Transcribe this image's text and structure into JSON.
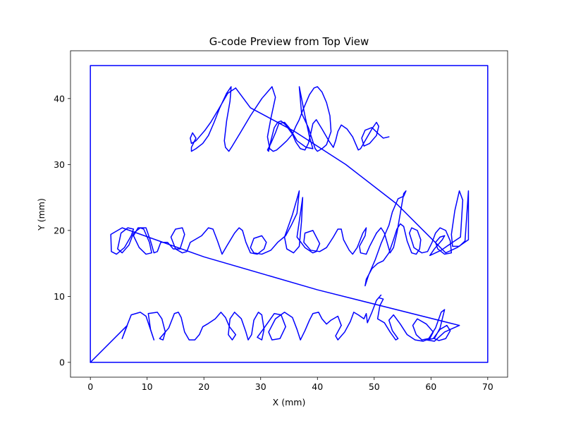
{
  "chart_data": {
    "type": "line",
    "title": "G-code Preview from Top View",
    "xlabel": "X (mm)",
    "ylabel": "Y (mm)",
    "xlim": [
      -3.5,
      73.5
    ],
    "ylim": [
      -2.25,
      47.25
    ],
    "xticks": [
      0,
      10,
      20,
      30,
      40,
      50,
      60,
      70
    ],
    "yticks": [
      0,
      10,
      20,
      30,
      40
    ],
    "grid": false,
    "legend": "none",
    "series_color": "#0000ff",
    "series": [
      {
        "x": [
          0,
          0,
          70,
          70,
          0,
          0
        ],
        "y": [
          0,
          45,
          45,
          0,
          0,
          0
        ]
      },
      {
        "x": [
          0,
          6.5,
          5.6,
          6.2,
          7.2,
          8.8,
          9.8,
          10.5,
          11.2,
          10.6,
          10.2,
          11.8,
          12.6,
          13.2,
          12.8,
          12.2,
          13.8,
          14.8,
          15.5,
          16.0,
          16.6,
          17.4,
          18.4,
          19.2,
          19.8,
          20.6,
          22.0,
          23.0,
          23.8,
          24.5,
          25.6,
          25.0,
          24.3,
          24.6,
          25.4
        ],
        "y": [
          0,
          5.6,
          3.6,
          5.0,
          7.2,
          7.6,
          7.0,
          5.2,
          3.4,
          5.0,
          7.4,
          7.6,
          6.6,
          4.6,
          3.4,
          3.6,
          5.2,
          7.4,
          7.6,
          6.8,
          4.6,
          3.4,
          3.4,
          4.2,
          5.4,
          5.8,
          6.6,
          7.6,
          6.8,
          5.4,
          4.2,
          3.4,
          4.2,
          6.6,
          7.6
        ]
      },
      {
        "x": [
          25.4,
          26.6,
          27.4,
          27.8,
          28.4,
          28.8,
          29.6,
          30.2,
          30.6,
          30.2,
          29.4,
          30.6,
          32.4,
          33.6,
          34.4,
          33.4,
          32.0,
          31.4,
          32.6,
          34.2,
          35.6,
          36.4,
          37.0,
          37.8,
          38.6,
          39.2,
          40.2,
          40.8,
          41.6,
          42.4,
          43.6,
          44.2
        ],
        "y": [
          7.6,
          6.6,
          4.6,
          3.4,
          4.2,
          6.4,
          7.6,
          7.2,
          5.0,
          3.4,
          3.8,
          5.2,
          7.4,
          7.2,
          5.4,
          3.6,
          3.4,
          4.6,
          6.6,
          7.6,
          6.8,
          5.0,
          3.4,
          4.8,
          6.4,
          7.4,
          7.6,
          6.6,
          5.8,
          6.4,
          7.0,
          5.6
        ]
      },
      {
        "x": [
          44.2,
          43.2,
          43.6,
          44.8,
          45.8,
          46.4,
          47.2,
          48.2,
          48.6,
          48.8,
          49.6,
          50.4,
          51.2,
          50.8,
          51.6,
          51.0,
          50.6,
          51.8,
          52.8,
          53.8,
          54.2,
          53.2,
          52.6,
          53.4,
          54.6,
          55.8,
          57.2,
          58.6,
          59.8,
          60.4,
          59.2,
          57.6,
          56.8,
          57.4,
          58.4,
          59.6,
          60.8,
          61.8,
          62.4,
          61.6,
          60.6,
          61.4,
          62.6,
          63.4,
          62.8,
          61.6,
          60.4,
          59.2,
          60.6,
          62.4,
          65.0
        ],
        "y": [
          5.6,
          4.0,
          3.4,
          4.6,
          6.2,
          7.6,
          7.2,
          6.6,
          7.4,
          6.0,
          7.6,
          9.4,
          10.2,
          9.8,
          9.6,
          8.6,
          6.6,
          6.0,
          4.6,
          3.4,
          3.6,
          4.8,
          6.4,
          7.2,
          5.8,
          4.2,
          3.4,
          3.2,
          3.6,
          4.6,
          5.8,
          6.6,
          5.6,
          4.2,
          3.4,
          3.6,
          5.2,
          7.6,
          8.0,
          5.2,
          3.6,
          3.3,
          3.6,
          4.8,
          5.6,
          5.0,
          3.6,
          3.4,
          3.2,
          4.6,
          5.6
        ]
      },
      {
        "x": [
          65.0,
          40.0,
          20.0,
          5.6,
          3.6,
          3.7,
          4.6,
          6.0,
          7.2,
          7.6,
          6.6,
          5.4,
          4.8,
          5.6,
          6.8,
          7.6,
          8.8,
          9.4,
          10.4,
          10.8,
          9.8,
          8.6,
          7.6,
          8.4,
          9.8,
          10.6,
          11.2,
          11.8,
          12.4,
          13.6,
          14.6,
          15.8,
          16.6,
          16.2,
          15.0,
          14.2,
          15.0,
          16.2,
          17.0,
          17.6,
          19.6,
          20.8,
          21.6,
          22.4,
          23.2,
          24.0,
          25.4,
          26.2,
          26.8,
          27.4,
          28.2,
          29.4,
          30.6,
          31.0,
          30.2,
          28.8,
          28.2,
          28.8,
          30.2,
          31.8,
          33.0,
          34.4,
          35.4,
          36.4,
          36.8,
          35.6,
          34.2,
          34.6,
          35.8,
          36.8,
          37.2,
          37.4,
          36.4,
          37.8,
          39.2,
          39.8,
          40.4,
          39.2,
          37.8,
          37.6,
          38.8,
          40.4,
          41.6,
          42.2,
          42.8,
          43.6,
          44.2,
          44.6,
          45.6,
          46.2,
          47.0,
          48.0,
          48.6,
          48.4,
          47.4,
          47.6,
          48.6,
          49.2,
          50.4
        ],
        "y": [
          5.6,
          11.0,
          16.0,
          20.4,
          19.4,
          16.8,
          16.4,
          17.4,
          19.2,
          20.2,
          20.4,
          19.6,
          17.2,
          16.6,
          17.8,
          19.6,
          20.4,
          20.2,
          18.2,
          16.6,
          16.4,
          17.4,
          19.2,
          20.4,
          20.4,
          18.4,
          16.6,
          16.8,
          18.2,
          18.2,
          17.2,
          17.2,
          19.4,
          20.4,
          20.2,
          19.0,
          17.2,
          16.6,
          16.8,
          18.2,
          19.2,
          20.4,
          20.2,
          18.4,
          16.4,
          17.6,
          19.6,
          20.4,
          20.0,
          18.2,
          16.6,
          16.4,
          17.2,
          18.2,
          19.2,
          18.8,
          17.4,
          16.6,
          16.4,
          17.0,
          18.2,
          19.2,
          20.8,
          22.6,
          26.0,
          22.4,
          19.0,
          17.2,
          16.6,
          17.6,
          21.4,
          25.0,
          19.0,
          17.4,
          16.6,
          16.8,
          18.0,
          20.0,
          19.6,
          18.2,
          17.0,
          16.8,
          17.4,
          18.2,
          19.0,
          20.2,
          20.2,
          18.6,
          17.0,
          16.4,
          17.4,
          19.6,
          20.4,
          19.2,
          17.6,
          16.6,
          16.4,
          17.6,
          19.6
        ]
      },
      {
        "x": [
          50.4,
          51.2,
          51.8,
          52.4,
          52.8,
          53.4,
          54.0,
          54.6,
          55.2,
          55.6,
          55.2,
          54.2,
          53.2,
          52.6,
          52.0,
          51.2,
          50.2,
          49.0,
          48.4,
          48.6,
          49.6,
          50.6,
          51.6,
          52.6,
          53.4,
          54.0,
          54.6,
          55.2,
          55.8,
          56.6,
          57.4,
          58.0,
          58.2,
          57.6,
          56.6,
          56.2,
          57.0,
          58.4,
          59.4,
          60.2,
          60.8,
          61.6,
          62.6,
          63.4,
          63.6,
          62.4,
          61.2,
          60.8,
          61.6,
          62.4
        ],
        "y": [
          19.6,
          20.4,
          19.6,
          17.8,
          16.6,
          17.4,
          19.6,
          22.6,
          25.6,
          26.0,
          25.2,
          24.8,
          22.8,
          20.8,
          19.6,
          18.0,
          15.6,
          13.2,
          11.6,
          12.6,
          14.2,
          15.0,
          15.4,
          16.6,
          18.6,
          20.2,
          21.0,
          20.6,
          18.4,
          16.6,
          16.4,
          17.2,
          18.6,
          20.0,
          20.4,
          19.6,
          17.4,
          16.6,
          16.8,
          18.2,
          19.6,
          20.4,
          20.0,
          18.4,
          16.6,
          16.4,
          17.2,
          18.2,
          19.0,
          19.2
        ]
      },
      {
        "x": [
          62.4,
          62.0,
          60.6,
          59.8,
          61.8,
          63.8,
          65.2,
          65.6,
          65.0,
          64.2,
          63.6,
          63.8,
          65.0,
          66.0,
          66.6,
          66.6,
          64.6,
          62.6,
          54.0,
          45.0,
          36.0,
          28.2,
          25.6
        ],
        "y": [
          19.2,
          18.6,
          17.2,
          16.2,
          17.0,
          18.2,
          19.0,
          24.6,
          26.0,
          23.0,
          19.4,
          17.6,
          17.6,
          18.4,
          26.0,
          18.6,
          17.4,
          16.6,
          24.0,
          30.0,
          35.0,
          38.6,
          41.6
        ]
      },
      {
        "x": [
          25.6,
          24.2,
          22.6,
          21.2,
          20.2,
          19.2,
          18.6,
          17.8,
          17.6,
          18.0,
          18.6,
          17.8,
          17.8,
          18.6,
          19.8,
          20.8,
          21.8,
          22.8,
          24.0,
          24.8,
          24.6,
          24.0,
          23.6,
          23.8,
          24.4,
          25.0,
          26.4,
          28.2,
          30.2,
          32.0,
          32.6,
          31.8,
          31.2,
          31.6,
          32.2,
          32.8,
          33.6,
          34.6,
          35.6,
          36.2,
          36.8,
          37.4,
          38.0,
          38.6,
          39.4,
          40.0,
          40.8,
          41.6,
          42.2,
          42.4,
          41.6,
          40.8,
          40.0,
          39.6
        ],
        "y": [
          41.6,
          40.8,
          38.4,
          36.4,
          35.2,
          34.2,
          33.6,
          33.2,
          34.0,
          34.8,
          34.0,
          32.6,
          32.0,
          32.4,
          33.2,
          34.4,
          36.4,
          38.6,
          40.8,
          41.8,
          39.6,
          36.6,
          33.6,
          32.6,
          32.0,
          32.8,
          34.8,
          37.4,
          40.0,
          41.8,
          40.2,
          37.0,
          34.2,
          32.4,
          32.0,
          32.2,
          32.8,
          33.6,
          34.6,
          35.8,
          36.8,
          38.2,
          39.4,
          40.6,
          41.6,
          41.8,
          41.0,
          39.4,
          37.4,
          35.0,
          33.0,
          32.4,
          32.0,
          32.4
        ]
      },
      {
        "x": [
          39.6,
          38.4,
          37.2,
          36.8,
          37.8,
          38.6,
          39.2,
          38.0,
          36.4,
          35.6,
          35.0,
          34.2,
          33.2,
          32.6,
          31.8,
          31.2,
          31.4,
          31.8,
          32.4,
          33.0,
          33.6,
          34.4,
          35.6,
          36.2,
          37.0,
          37.8,
          38.4,
          38.8,
          39.2,
          39.8,
          40.8,
          42.0,
          42.8,
          43.2,
          43.6,
          44.2,
          45.2,
          46.2,
          46.8,
          47.2,
          47.6,
          48.4,
          49.6,
          50.4,
          50.8,
          50.4,
          49.2,
          48.2,
          47.8,
          48.4,
          49.6,
          50.8,
          51.6,
          52.6
        ],
        "y": [
          32.4,
          35.6,
          37.8,
          41.8,
          37.4,
          34.2,
          32.4,
          32.6,
          33.6,
          34.8,
          35.6,
          36.4,
          36.2,
          34.8,
          33.2,
          32.2,
          32.0,
          33.6,
          35.6,
          36.4,
          36.6,
          36.0,
          34.6,
          33.4,
          32.4,
          32.2,
          33.2,
          34.6,
          36.2,
          36.8,
          35.4,
          33.6,
          32.6,
          33.6,
          35.0,
          36.0,
          35.4,
          34.2,
          33.0,
          32.2,
          32.4,
          33.6,
          35.4,
          36.4,
          35.8,
          34.4,
          33.2,
          32.8,
          34.0,
          35.2,
          35.6,
          34.6,
          34.0,
          34.2
        ]
      }
    ]
  }
}
